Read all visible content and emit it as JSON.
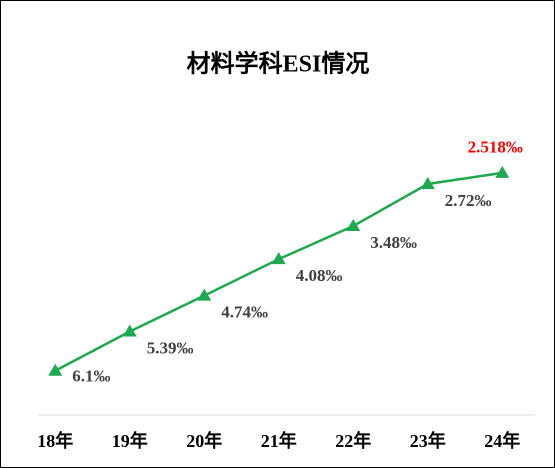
{
  "chart_data": {
    "type": "line",
    "title": "材料学科ESI情况",
    "categories": [
      "18年",
      "19年",
      "20年",
      "21年",
      "22年",
      "23年",
      "24年"
    ],
    "series": [
      {
        "color": "#1fa84f",
        "values": [
          6.1,
          5.39,
          4.74,
          4.08,
          3.48,
          2.72,
          2.518
        ],
        "value_labels": [
          "6.1‰",
          "5.39‰",
          "4.74‰",
          "4.08‰",
          "3.48‰",
          "2.72‰",
          "2.518‰"
        ],
        "value_label_colors": [
          "#404040",
          "#404040",
          "#404040",
          "#404040",
          "#404040",
          "#404040",
          "#ff0000"
        ]
      }
    ],
    "ylim": [
      6.9,
      1.2
    ],
    "marker": "triangle"
  }
}
